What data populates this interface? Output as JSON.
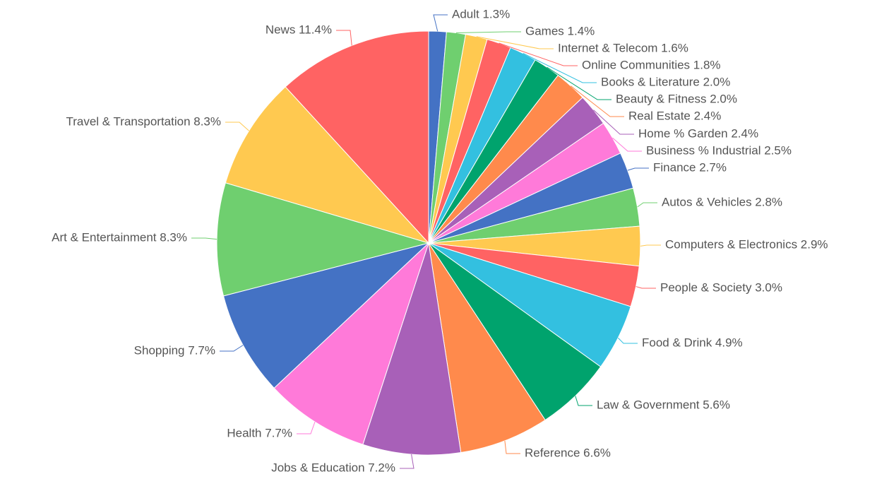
{
  "chart_data": {
    "type": "pie",
    "start_angle_deg": 90,
    "direction": "clockwise",
    "slices": [
      {
        "label": "Adult 1.3%",
        "value": 1.3,
        "color": "#4472c4"
      },
      {
        "label": "Games 1.4%",
        "value": 1.4,
        "color": "#6fcf6f"
      },
      {
        "label": "Internet & Telecom 1.6%",
        "value": 1.6,
        "color": "#ffc950"
      },
      {
        "label": "Online Communities 1.8%",
        "value": 1.8,
        "color": "#ff6363"
      },
      {
        "label": "Books & Literature 2.0%",
        "value": 2.0,
        "color": "#33c0e0"
      },
      {
        "label": "Beauty & Fitness 2.0%",
        "value": 2.0,
        "color": "#00a36d"
      },
      {
        "label": "Real Estate 2.4%",
        "value": 2.4,
        "color": "#ff8a4c"
      },
      {
        "label": "Home % Garden 2.4%",
        "value": 2.4,
        "color": "#a860b8"
      },
      {
        "label": "Business % Industrial 2.5%",
        "value": 2.5,
        "color": "#ff7ad9"
      },
      {
        "label": "Finance 2.7%",
        "value": 2.7,
        "color": "#4472c4"
      },
      {
        "label": "Autos & Vehicles 2.8%",
        "value": 2.8,
        "color": "#6fcf6f"
      },
      {
        "label": "Computers & Electronics 2.9%",
        "value": 2.9,
        "color": "#ffc950"
      },
      {
        "label": "People & Society 3.0%",
        "value": 3.0,
        "color": "#ff6363"
      },
      {
        "label": "Food & Drink 4.9%",
        "value": 4.9,
        "color": "#33c0e0"
      },
      {
        "label": "Law & Government 5.6%",
        "value": 5.6,
        "color": "#00a36d"
      },
      {
        "label": "Reference 6.6%",
        "value": 6.6,
        "color": "#ff8a4c"
      },
      {
        "label": "Jobs & Education 7.2%",
        "value": 7.2,
        "color": "#a860b8"
      },
      {
        "label": "Health 7.7%",
        "value": 7.7,
        "color": "#ff7ad9"
      },
      {
        "label": "Shopping 7.7%",
        "value": 7.7,
        "color": "#4472c4"
      },
      {
        "label": "Art & Entertainment 8.3%",
        "value": 8.3,
        "color": "#6fcf6f"
      },
      {
        "label": "Travel & Transportation 8.3%",
        "value": 8.3,
        "color": "#ffc950"
      },
      {
        "label": "News 11.4%",
        "value": 11.4,
        "color": "#ff6363"
      }
    ]
  }
}
